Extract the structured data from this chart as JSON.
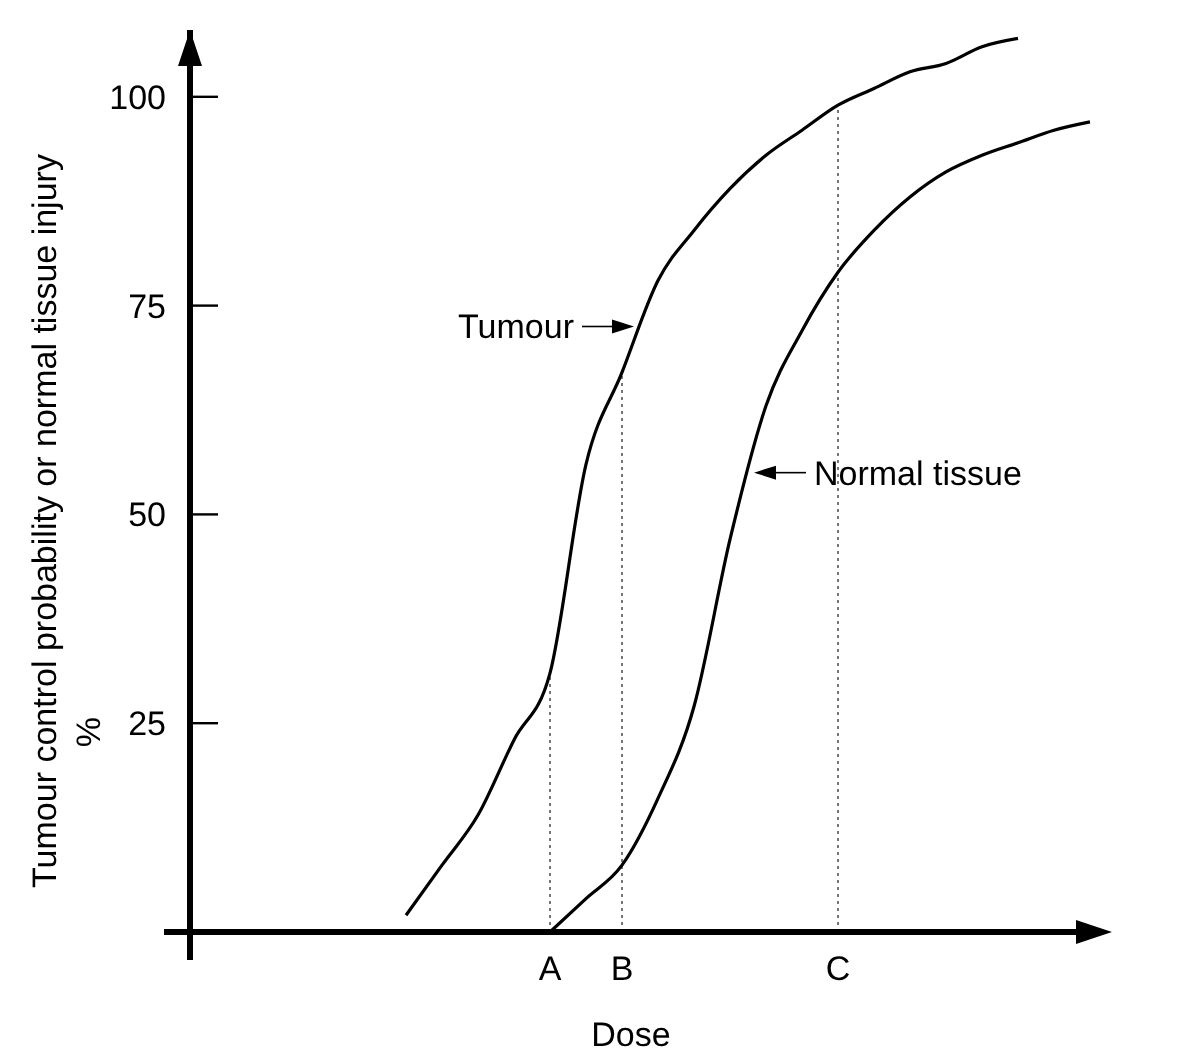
{
  "chart_data": {
    "type": "line",
    "xlabel": "Dose",
    "ylabel": "Tumour control probability or normal tissue injury %",
    "categories": [
      null,
      null,
      null,
      null,
      null,
      null,
      null,
      null,
      null,
      null,
      "A",
      null,
      "B",
      null,
      null,
      null,
      null,
      null,
      "C",
      null,
      null,
      null,
      null,
      null,
      null,
      null
    ],
    "ylim": [
      0,
      108
    ],
    "yticks": [
      25,
      50,
      75,
      100
    ],
    "ref_lines": [
      {
        "axis": "x",
        "value": "A",
        "line_style": "dotted"
      },
      {
        "axis": "x",
        "value": "B",
        "line_style": "dotted"
      },
      {
        "axis": "x",
        "value": "C",
        "line_style": "dotted"
      }
    ],
    "grid": false,
    "marker": "none",
    "line_style": "solid",
    "series": [
      {
        "name": "Tumour",
        "color": "#000000",
        "values": [
          null,
          null,
          null,
          null,
          null,
          null,
          2,
          8,
          14,
          23,
          31,
          56,
          67,
          78,
          84,
          89,
          93,
          96,
          99,
          101,
          103,
          104,
          106,
          107,
          null,
          null
        ]
      },
      {
        "name": "Normal tissue",
        "color": "#000000",
        "values": [
          null,
          null,
          null,
          null,
          null,
          null,
          null,
          null,
          null,
          null,
          0,
          4,
          8,
          16,
          27,
          47,
          63,
          72,
          79,
          84,
          88,
          91,
          93,
          94.5,
          96,
          97
        ]
      }
    ]
  }
}
